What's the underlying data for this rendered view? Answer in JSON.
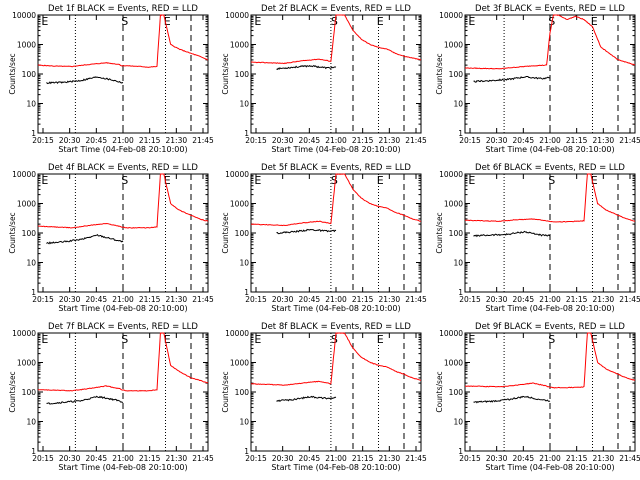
{
  "colors": {
    "events": "#000000",
    "lld": "#ff0000",
    "axes": "#000000",
    "background": "#ffffff"
  },
  "chart_data": [
    {
      "type": "line",
      "title": "Det 1f BLACK = Events, RED = LLD",
      "xlabel": "Start Time (04-Feb-08 20:10:00)",
      "ylabel": "Counts/sec",
      "yscale": "log",
      "ylim": [
        1,
        10000
      ],
      "xlim": [
        0,
        100
      ],
      "x_tick_labels": [
        "20:15",
        "20:30",
        "20:45",
        "21:00",
        "21:15",
        "21:30",
        "21:45"
      ],
      "y_tick_labels": [
        "1",
        "10",
        "100",
        "1000",
        "10000"
      ],
      "markers": {
        "dotted": [
          22,
          75
        ],
        "dashed": [
          50,
          90
        ],
        "letters": [
          {
            "label": "E",
            "at": 2
          },
          {
            "label": "S",
            "at": 49
          },
          {
            "label": "E",
            "at": 74
          }
        ]
      },
      "series": [
        {
          "name": "LLD",
          "color": "red",
          "x": [
            0,
            10,
            20,
            30,
            40,
            48,
            49,
            52,
            60,
            65,
            70,
            72,
            74,
            78,
            83,
            90,
            95,
            100
          ],
          "y": [
            200,
            185,
            180,
            210,
            240,
            210,
            190,
            190,
            180,
            170,
            180,
            10000,
            10000,
            1000,
            700,
            500,
            400,
            300
          ]
        },
        {
          "name": "Events",
          "color": "black",
          "x": [
            5,
            15,
            25,
            35,
            45,
            50
          ],
          "y": [
            50,
            52,
            60,
            80,
            60,
            50
          ]
        }
      ]
    },
    {
      "type": "line",
      "title": "Det 2f BLACK = Events, RED = LLD",
      "xlabel": "Start Time (04-Feb-08 20:10:00)",
      "ylabel": "Counts/sec",
      "yscale": "log",
      "ylim": [
        1,
        10000
      ],
      "xlim": [
        0,
        100
      ],
      "x_tick_labels": [
        "20:15",
        "20:30",
        "20:45",
        "21:00",
        "21:15",
        "21:30",
        "21:45"
      ],
      "y_tick_labels": [
        "1",
        "10",
        "100",
        "1000",
        "10000"
      ],
      "markers": {
        "dotted": [
          47,
          75
        ],
        "dashed": [
          60,
          90
        ],
        "letters": [
          {
            "label": "E",
            "at": 2
          },
          {
            "label": "S",
            "at": 47
          },
          {
            "label": "E",
            "at": 74
          }
        ]
      },
      "series": [
        {
          "name": "LLD",
          "color": "red",
          "x": [
            0,
            10,
            20,
            30,
            40,
            47,
            50,
            55,
            60,
            65,
            70,
            75,
            80,
            85,
            90,
            95,
            100
          ],
          "y": [
            250,
            240,
            230,
            280,
            320,
            270,
            10000,
            10000,
            3000,
            1500,
            1000,
            800,
            700,
            500,
            400,
            350,
            300
          ]
        },
        {
          "name": "Events",
          "color": "black",
          "x": [
            15,
            25,
            35,
            45,
            50
          ],
          "y": [
            150,
            170,
            190,
            160,
            170
          ]
        }
      ]
    },
    {
      "type": "line",
      "title": "Det 3f BLACK = Events, RED = LLD",
      "xlabel": "Start Time (04-Feb-08 20:10:00)",
      "ylabel": "Counts/sec",
      "yscale": "log",
      "ylim": [
        1,
        10000
      ],
      "xlim": [
        0,
        100
      ],
      "x_tick_labels": [
        "20:15",
        "20:30",
        "20:45",
        "21:00",
        "21:15",
        "21:30",
        "21:45"
      ],
      "y_tick_labels": [
        "1",
        "10",
        "100",
        "1000",
        "10000"
      ],
      "markers": {
        "dotted": [
          23,
          75
        ],
        "dashed": [
          50,
          90
        ],
        "letters": [
          {
            "label": "E",
            "at": 2
          },
          {
            "label": "S",
            "at": 49
          },
          {
            "label": "E",
            "at": 74
          }
        ]
      },
      "series": [
        {
          "name": "LLD",
          "color": "red",
          "x": [
            0,
            10,
            20,
            30,
            40,
            48,
            50,
            52,
            55,
            60,
            65,
            70,
            75,
            80,
            85,
            90,
            95,
            100
          ],
          "y": [
            160,
            155,
            150,
            170,
            190,
            200,
            2500,
            10000,
            10000,
            7000,
            9000,
            7000,
            4000,
            800,
            500,
            300,
            250,
            200
          ]
        },
        {
          "name": "Events",
          "color": "black",
          "x": [
            5,
            15,
            25,
            35,
            45,
            50
          ],
          "y": [
            55,
            60,
            65,
            80,
            70,
            75
          ]
        }
      ]
    },
    {
      "type": "line",
      "title": "Det 4f BLACK = Events, RED = LLD",
      "xlabel": "Start Time (04-Feb-08 20:10:00)",
      "ylabel": "Counts/sec",
      "yscale": "log",
      "ylim": [
        1,
        10000
      ],
      "xlim": [
        0,
        100
      ],
      "x_tick_labels": [
        "20:15",
        "20:30",
        "20:45",
        "21:00",
        "21:15",
        "21:30",
        "21:45"
      ],
      "y_tick_labels": [
        "1",
        "10",
        "100",
        "1000",
        "10000"
      ],
      "markers": {
        "dotted": [
          22,
          75
        ],
        "dashed": [
          50,
          90
        ],
        "letters": [
          {
            "label": "E",
            "at": 2
          },
          {
            "label": "S",
            "at": 49
          },
          {
            "label": "E",
            "at": 74
          }
        ]
      },
      "series": [
        {
          "name": "LLD",
          "color": "red",
          "x": [
            0,
            10,
            20,
            30,
            40,
            48,
            49,
            52,
            60,
            65,
            70,
            72,
            74,
            78,
            83,
            90,
            95,
            100
          ],
          "y": [
            170,
            160,
            150,
            180,
            210,
            170,
            160,
            150,
            150,
            150,
            160,
            10000,
            10000,
            1000,
            600,
            400,
            300,
            250
          ]
        },
        {
          "name": "Events",
          "color": "black",
          "x": [
            5,
            15,
            25,
            35,
            45,
            50
          ],
          "y": [
            45,
            50,
            60,
            85,
            60,
            50
          ]
        }
      ]
    },
    {
      "type": "line",
      "title": "Det 5f BLACK = Events, RED = LLD",
      "xlabel": "Start Time (04-Feb-08 20:10:00)",
      "ylabel": "Counts/sec",
      "yscale": "log",
      "ylim": [
        1,
        10000
      ],
      "xlim": [
        0,
        100
      ],
      "x_tick_labels": [
        "20:15",
        "20:30",
        "20:45",
        "21:00",
        "21:15",
        "21:30",
        "21:45"
      ],
      "y_tick_labels": [
        "1",
        "10",
        "100",
        "1000",
        "10000"
      ],
      "markers": {
        "dotted": [
          47,
          75
        ],
        "dashed": [
          60,
          90
        ],
        "letters": [
          {
            "label": "E",
            "at": 2
          },
          {
            "label": "S",
            "at": 47
          },
          {
            "label": "E",
            "at": 74
          }
        ]
      },
      "series": [
        {
          "name": "LLD",
          "color": "red",
          "x": [
            0,
            10,
            20,
            30,
            40,
            47,
            50,
            55,
            60,
            65,
            70,
            75,
            80,
            85,
            90,
            95,
            100
          ],
          "y": [
            200,
            190,
            180,
            220,
            250,
            210,
            10000,
            10000,
            3000,
            1500,
            1000,
            800,
            700,
            500,
            400,
            300,
            250
          ]
        },
        {
          "name": "Events",
          "color": "black",
          "x": [
            15,
            25,
            35,
            45,
            50
          ],
          "y": [
            100,
            110,
            130,
            115,
            120
          ]
        }
      ]
    },
    {
      "type": "line",
      "title": "Det 6f BLACK = Events, RED = LLD",
      "xlabel": "Start Time (04-Feb-08 20:10:00)",
      "ylabel": "Counts/sec",
      "yscale": "log",
      "ylim": [
        1,
        10000
      ],
      "xlim": [
        0,
        100
      ],
      "x_tick_labels": [
        "20:15",
        "20:30",
        "20:45",
        "21:00",
        "21:15",
        "21:30",
        "21:45"
      ],
      "y_tick_labels": [
        "1",
        "10",
        "100",
        "1000",
        "10000"
      ],
      "markers": {
        "dotted": [
          23,
          75
        ],
        "dashed": [
          50,
          90
        ],
        "letters": [
          {
            "label": "E",
            "at": 2
          },
          {
            "label": "S",
            "at": 49
          },
          {
            "label": "E",
            "at": 74
          }
        ]
      },
      "series": [
        {
          "name": "LLD",
          "color": "red",
          "x": [
            0,
            10,
            20,
            30,
            40,
            48,
            49,
            52,
            60,
            65,
            70,
            72,
            74,
            78,
            83,
            90,
            95,
            100
          ],
          "y": [
            270,
            260,
            250,
            280,
            300,
            260,
            250,
            240,
            240,
            250,
            260,
            10000,
            10000,
            1000,
            600,
            400,
            300,
            250
          ]
        },
        {
          "name": "Events",
          "color": "black",
          "x": [
            5,
            15,
            25,
            35,
            45,
            50
          ],
          "y": [
            80,
            85,
            90,
            110,
            85,
            80
          ]
        }
      ]
    },
    {
      "type": "line",
      "title": "Det 7f BLACK = Events, RED = LLD",
      "xlabel": "Start Time (04-Feb-08 20:10:00)",
      "ylabel": "Counts/sec",
      "yscale": "log",
      "ylim": [
        1,
        10000
      ],
      "xlim": [
        0,
        100
      ],
      "x_tick_labels": [
        "20:15",
        "20:30",
        "20:45",
        "21:00",
        "21:15",
        "21:30",
        "21:45"
      ],
      "y_tick_labels": [
        "1",
        "10",
        "100",
        "1000",
        "10000"
      ],
      "markers": {
        "dotted": [
          22,
          75
        ],
        "dashed": [
          50,
          90
        ],
        "letters": [
          {
            "label": "E",
            "at": 2
          },
          {
            "label": "S",
            "at": 49
          },
          {
            "label": "E",
            "at": 74
          }
        ]
      },
      "series": [
        {
          "name": "LLD",
          "color": "red",
          "x": [
            0,
            10,
            20,
            30,
            40,
            48,
            49,
            52,
            60,
            65,
            70,
            72,
            74,
            78,
            83,
            90,
            95,
            100
          ],
          "y": [
            120,
            115,
            110,
            130,
            160,
            130,
            120,
            110,
            110,
            110,
            120,
            10000,
            10000,
            800,
            500,
            300,
            250,
            200
          ]
        },
        {
          "name": "Events",
          "color": "black",
          "x": [
            5,
            15,
            25,
            35,
            45,
            50
          ],
          "y": [
            40,
            45,
            50,
            70,
            55,
            45
          ]
        }
      ]
    },
    {
      "type": "line",
      "title": "Det 8f BLACK = Events, RED = LLD",
      "xlabel": "Start Time (04-Feb-08 20:10:00)",
      "ylabel": "Counts/sec",
      "yscale": "log",
      "ylim": [
        1,
        10000
      ],
      "xlim": [
        0,
        100
      ],
      "x_tick_labels": [
        "20:15",
        "20:30",
        "20:45",
        "21:00",
        "21:15",
        "21:30",
        "21:45"
      ],
      "y_tick_labels": [
        "1",
        "10",
        "100",
        "1000",
        "10000"
      ],
      "markers": {
        "dotted": [
          47,
          75
        ],
        "dashed": [
          60,
          90
        ],
        "letters": [
          {
            "label": "E",
            "at": 2
          },
          {
            "label": "S",
            "at": 47
          },
          {
            "label": "E",
            "at": 74
          }
        ]
      },
      "series": [
        {
          "name": "LLD",
          "color": "red",
          "x": [
            0,
            10,
            20,
            30,
            40,
            47,
            50,
            55,
            60,
            65,
            70,
            75,
            80,
            85,
            90,
            95,
            100
          ],
          "y": [
            190,
            180,
            170,
            200,
            230,
            190,
            10000,
            10000,
            3000,
            1500,
            1000,
            800,
            700,
            500,
            400,
            300,
            250
          ]
        },
        {
          "name": "Events",
          "color": "black",
          "x": [
            15,
            25,
            35,
            45,
            50
          ],
          "y": [
            50,
            55,
            70,
            60,
            65
          ]
        }
      ]
    },
    {
      "type": "line",
      "title": "Det 9f BLACK = Events, RED = LLD",
      "xlabel": "Start Time (04-Feb-08 20:10:00)",
      "ylabel": "Counts/sec",
      "yscale": "log",
      "ylim": [
        1,
        10000
      ],
      "xlim": [
        0,
        100
      ],
      "x_tick_labels": [
        "20:15",
        "20:30",
        "20:45",
        "21:00",
        "21:15",
        "21:30",
        "21:45"
      ],
      "y_tick_labels": [
        "1",
        "10",
        "100",
        "1000",
        "10000"
      ],
      "markers": {
        "dotted": [
          23,
          75
        ],
        "dashed": [
          50,
          90
        ],
        "letters": [
          {
            "label": "E",
            "at": 2
          },
          {
            "label": "S",
            "at": 49
          },
          {
            "label": "E",
            "at": 74
          }
        ]
      },
      "series": [
        {
          "name": "LLD",
          "color": "red",
          "x": [
            0,
            10,
            20,
            30,
            40,
            48,
            49,
            52,
            60,
            65,
            70,
            72,
            74,
            78,
            83,
            90,
            95,
            100
          ],
          "y": [
            160,
            155,
            150,
            170,
            200,
            160,
            150,
            140,
            140,
            145,
            150,
            10000,
            10000,
            1000,
            600,
            400,
            300,
            250
          ]
        },
        {
          "name": "Events",
          "color": "black",
          "x": [
            5,
            15,
            25,
            35,
            45,
            50
          ],
          "y": [
            45,
            48,
            55,
            70,
            55,
            50
          ]
        }
      ]
    }
  ]
}
